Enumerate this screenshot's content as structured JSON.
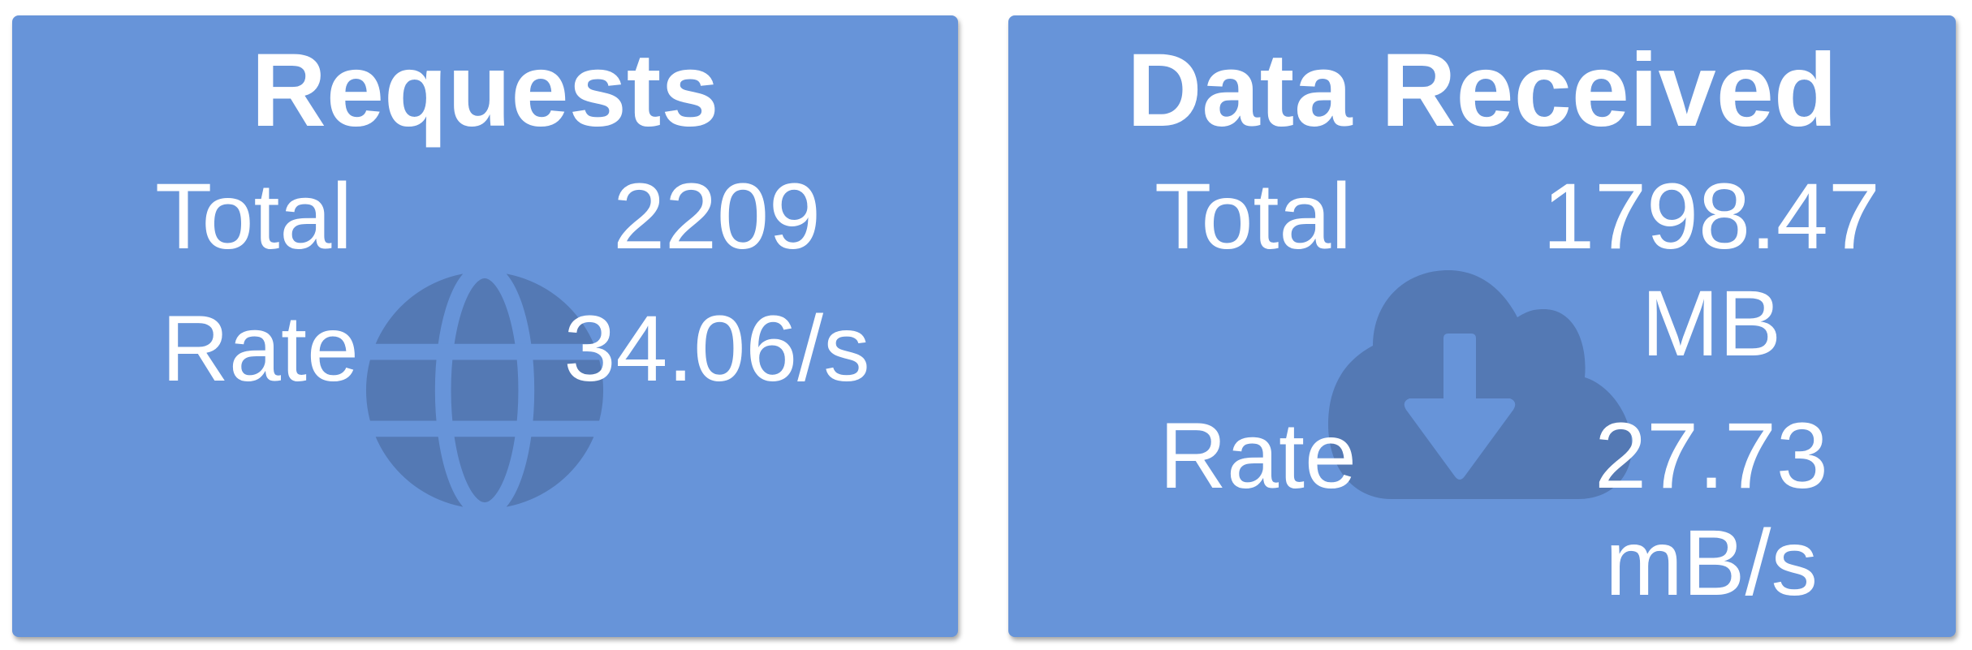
{
  "colors": {
    "card": "#6794D9",
    "icon": "#5479B4",
    "text": "#FFFFFF"
  },
  "cards": [
    {
      "title": "Requests",
      "icon": "globe-icon",
      "total_label": "Total",
      "total_value": "2209",
      "rate_label": "Rate",
      "rate_value": "34.06/s"
    },
    {
      "title": "Data Received",
      "icon": "cloud-download-icon",
      "total_label": "Total",
      "total_value": "1798.47 MB",
      "rate_label": "Rate",
      "rate_value": "27.73 mB/s"
    }
  ]
}
